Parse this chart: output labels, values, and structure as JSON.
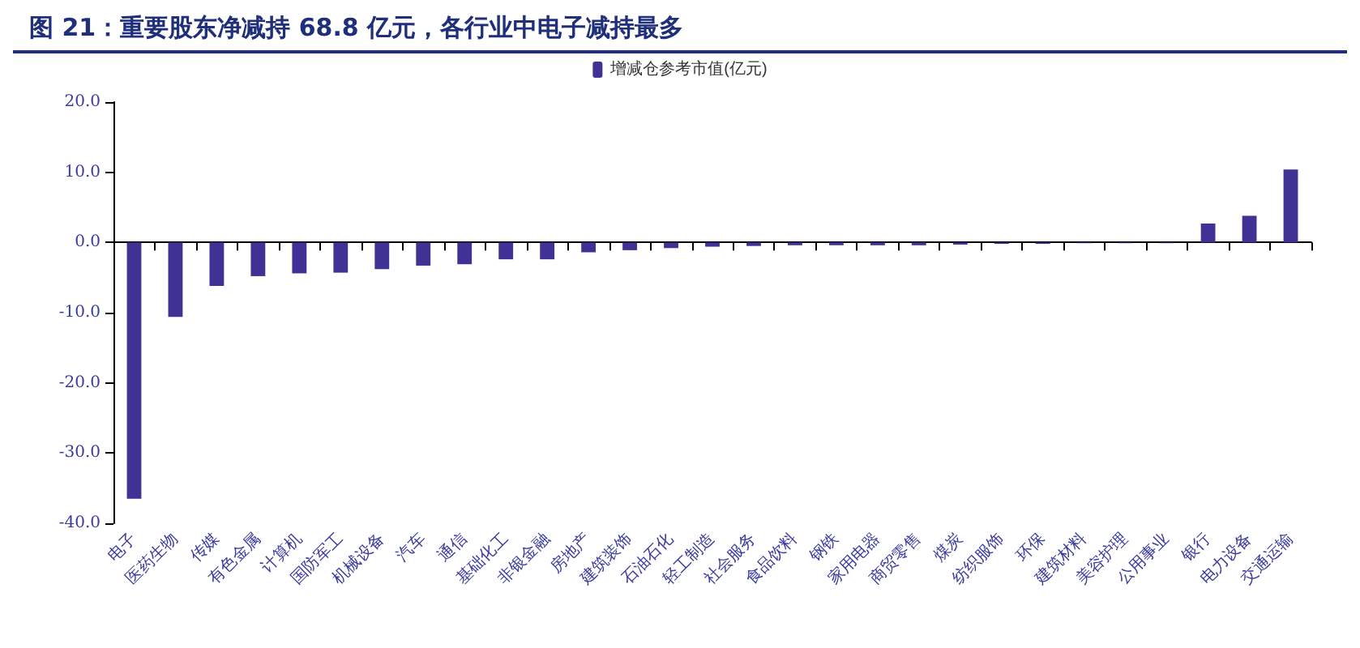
{
  "chart_data": {
    "type": "bar",
    "title": "图 21：重要股东净减持 68.8 亿元，各行业中电子减持最多",
    "categories": [
      "电子",
      "医药生物",
      "传媒",
      "有色金属",
      "计算机",
      "国防军工",
      "机械设备",
      "汽车",
      "通信",
      "基础化工",
      "非银金融",
      "房地产",
      "建筑装饰",
      "石油石化",
      "轻工制造",
      "社会服务",
      "食品饮料",
      "钢铁",
      "家用电器",
      "商贸零售",
      "煤炭",
      "纺织服饰",
      "环保",
      "建筑材料",
      "美容护理",
      "公用事业",
      "银行",
      "电力设备",
      "交通运输"
    ],
    "series": [
      {
        "name": "增减仓参考市值(亿元)",
        "color": "#403294",
        "values": [
          -36.5,
          -10.6,
          -6.2,
          -4.8,
          -4.4,
          -4.3,
          -3.8,
          -3.3,
          -3.1,
          -2.4,
          -2.4,
          -1.4,
          -1.1,
          -0.8,
          -0.6,
          -0.5,
          -0.4,
          -0.4,
          -0.4,
          -0.4,
          -0.3,
          -0.2,
          -0.2,
          -0.1,
          -0.1,
          -0.1,
          2.7,
          3.8,
          10.4
        ]
      }
    ],
    "ylim": [
      -40,
      20
    ],
    "yticks": [
      {
        "value": -40,
        "label": "-40.0"
      },
      {
        "value": -30,
        "label": "-30.0"
      },
      {
        "value": -20,
        "label": "-20.0"
      },
      {
        "value": -10,
        "label": "-10.0"
      },
      {
        "value": 0,
        "label": "0.0"
      },
      {
        "value": 10,
        "label": "10.0"
      },
      {
        "value": 20,
        "label": "20.0"
      }
    ],
    "legend": "top"
  }
}
